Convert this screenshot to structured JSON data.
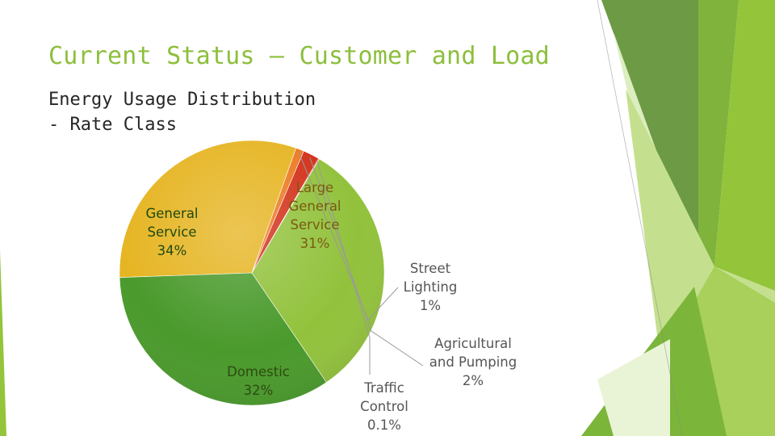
{
  "slide": {
    "title": "Current Status – Customer and Load",
    "subtitle_lines": [
      "Energy Usage Distribution",
      "- Rate Class"
    ]
  },
  "chart_data": {
    "type": "pie",
    "title": "",
    "slices": [
      {
        "name": "Large General Service",
        "label_lines": [
          "Large",
          "General",
          "Service",
          "31%"
        ],
        "value": 31,
        "color": "#e6b523"
      },
      {
        "name": "Street Lighting",
        "label_lines": [
          "Street",
          "Lighting",
          "1%"
        ],
        "value": 1,
        "color": "#ec7a22"
      },
      {
        "name": "Agricultural and Pumping",
        "label_lines": [
          "Agricultural",
          "and Pumping",
          "2%"
        ],
        "value": 2,
        "color": "#d2321a"
      },
      {
        "name": "Traffic Control",
        "label_lines": [
          "Traffic",
          "Control",
          "0.1%"
        ],
        "value": 0.1,
        "color": "#c0281a"
      },
      {
        "name": "Domestic",
        "label_lines": [
          "Domestic",
          "32%"
        ],
        "value": 32,
        "color": "#92c23c"
      },
      {
        "name": "General Service",
        "label_lines": [
          "General",
          "Service",
          "34%"
        ],
        "value": 34,
        "color": "#4a9a2c"
      }
    ]
  }
}
